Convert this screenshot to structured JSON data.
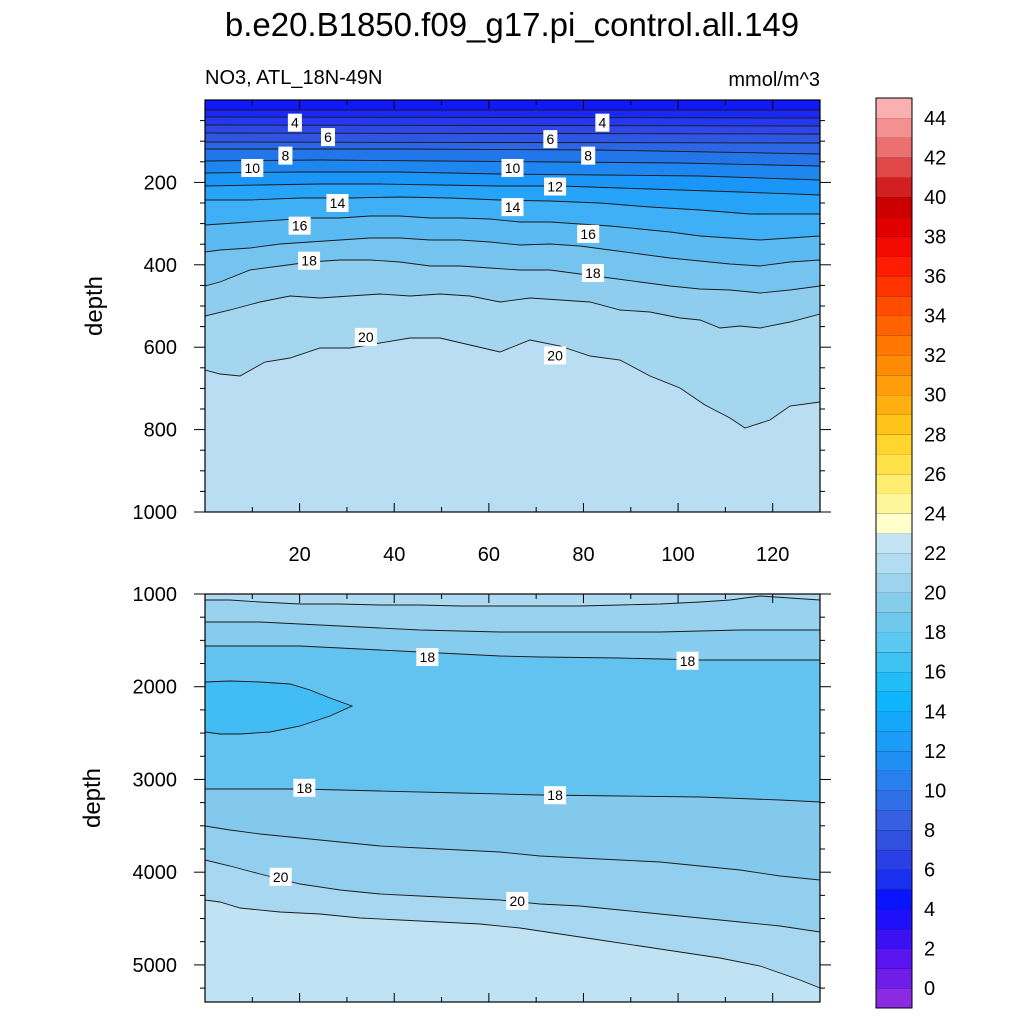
{
  "title": "b.e20.B1850.f09_g17.pi_control.all.149",
  "variable_label": "NO3, ATL_18N-49N",
  "units_label": "mmol/m^3",
  "chart_data": [
    {
      "type": "contour",
      "panel": "upper",
      "ylabel": "depth",
      "xlabel": "",
      "ylim": [
        1000,
        0
      ],
      "xlim": [
        0,
        130
      ],
      "x_ticks": [
        "20",
        "40",
        "60",
        "80",
        "100",
        "120"
      ],
      "y_ticks": [
        "200",
        "400",
        "600",
        "800",
        "1000"
      ],
      "contour_labels": [
        {
          "text": "4",
          "x": 19,
          "y": 55
        },
        {
          "text": "6",
          "x": 26,
          "y": 90
        },
        {
          "text": "8",
          "x": 17,
          "y": 135
        },
        {
          "text": "10",
          "x": 10,
          "y": 165
        },
        {
          "text": "14",
          "x": 28,
          "y": 250
        },
        {
          "text": "16",
          "x": 20,
          "y": 305
        },
        {
          "text": "18",
          "x": 22,
          "y": 390
        },
        {
          "text": "20",
          "x": 34,
          "y": 575
        },
        {
          "text": "6",
          "x": 73,
          "y": 95
        },
        {
          "text": "4",
          "x": 84,
          "y": 55
        },
        {
          "text": "8",
          "x": 81,
          "y": 135
        },
        {
          "text": "10",
          "x": 65,
          "y": 165
        },
        {
          "text": "12",
          "x": 74,
          "y": 210
        },
        {
          "text": "14",
          "x": 65,
          "y": 260
        },
        {
          "text": "16",
          "x": 81,
          "y": 325
        },
        {
          "text": "18",
          "x": 82,
          "y": 420
        },
        {
          "text": "20",
          "x": 74,
          "y": 620
        }
      ]
    },
    {
      "type": "contour",
      "panel": "lower",
      "ylabel": "depth",
      "xlabel": "",
      "ylim": [
        5400,
        1000
      ],
      "xlim": [
        0,
        130
      ],
      "y_ticks": [
        "1000",
        "2000",
        "3000",
        "4000",
        "5000"
      ],
      "contour_labels": [
        {
          "text": "18",
          "x": 47,
          "y": 1680
        },
        {
          "text": "18",
          "x": 102,
          "y": 1720
        },
        {
          "text": "18",
          "x": 21,
          "y": 3090
        },
        {
          "text": "18",
          "x": 74,
          "y": 3170
        },
        {
          "text": "20",
          "x": 16,
          "y": 4050
        },
        {
          "text": "20",
          "x": 66,
          "y": 4310
        }
      ]
    }
  ],
  "colorbar": {
    "labels": [
      "0",
      "2",
      "4",
      "6",
      "8",
      "10",
      "12",
      "14",
      "16",
      "18",
      "20",
      "22",
      "24",
      "26",
      "28",
      "30",
      "32",
      "34",
      "36",
      "38",
      "40",
      "42",
      "44"
    ],
    "colors": [
      "#8a2be2",
      "#6f1de8",
      "#5a14ef",
      "#3a10f5",
      "#1f10fb",
      "#0a14ff",
      "#1b2ff0",
      "#2a40e6",
      "#3050e0",
      "#3560e2",
      "#2f6fe8",
      "#2a7fee",
      "#1f8ff4",
      "#1a9cf8",
      "#15a8fa",
      "#0fb5fc",
      "#22bdf6",
      "#3fc3f2",
      "#5ac8f0",
      "#6ec9ec",
      "#86cceb",
      "#9ed3ee",
      "#b2dcf1",
      "#c4e4f4",
      "#ffffcc",
      "#fff59a",
      "#ffed70",
      "#ffe24a",
      "#ffd52e",
      "#ffc41a",
      "#ffb010",
      "#ff9d0a",
      "#ff8a04",
      "#ff7600",
      "#ff6200",
      "#ff4c00",
      "#ff3400",
      "#ff1c00",
      "#f20a00",
      "#e00000",
      "#cc0000",
      "#d22020",
      "#e04848",
      "#ec7070",
      "#f49090",
      "#fab0b0"
    ]
  }
}
